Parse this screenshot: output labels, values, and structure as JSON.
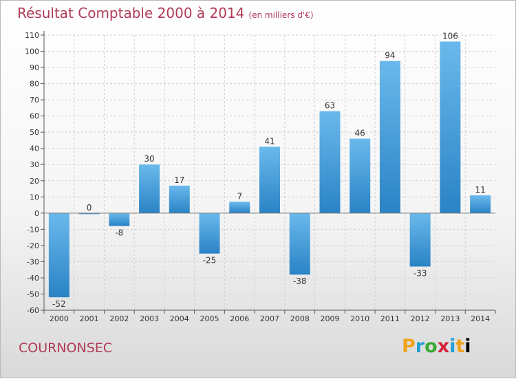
{
  "header": {
    "title": "Résultat Comptable 2000 à 2014",
    "subtitle": "(en milliers d'€)"
  },
  "footer": {
    "town": "COURNONSEC",
    "logo": "Proxiti"
  },
  "colors": {
    "bar_top": "#6ab9ec",
    "bar_bottom": "#2a83c5",
    "title": "#b03a56"
  },
  "chart_data": {
    "type": "bar",
    "title": "Résultat Comptable 2000 à 2014",
    "subtitle": "(en milliers d'€)",
    "categories": [
      "2000",
      "2001",
      "2002",
      "2003",
      "2004",
      "2005",
      "2006",
      "2007",
      "2008",
      "2009",
      "2010",
      "2011",
      "2012",
      "2013",
      "2014"
    ],
    "values": [
      -52,
      0,
      -8,
      30,
      17,
      -25,
      7,
      41,
      -38,
      63,
      46,
      94,
      -33,
      106,
      11
    ],
    "ylim": [
      -60,
      110
    ],
    "yticks": [
      -60,
      -50,
      -40,
      -30,
      -20,
      -10,
      0,
      10,
      20,
      30,
      40,
      50,
      60,
      70,
      80,
      90,
      100,
      110
    ],
    "grid": true,
    "xlabel": "",
    "ylabel": ""
  }
}
